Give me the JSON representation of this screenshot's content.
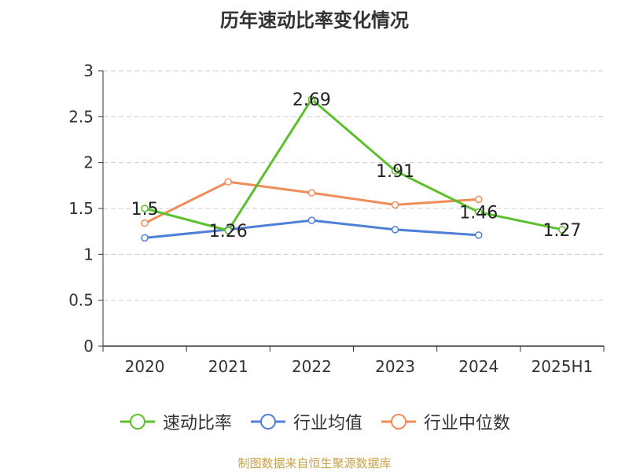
{
  "chart_data": {
    "type": "line",
    "title": "历年速动比率变化情况",
    "categories": [
      "2020",
      "2021",
      "2022",
      "2023",
      "2024",
      "2025H1"
    ],
    "ylim": [
      0,
      3
    ],
    "yticks": [
      "0",
      "0.5",
      "1",
      "1.5",
      "2",
      "2.5",
      "3"
    ],
    "grid": true,
    "legend_position": "bottom",
    "series": [
      {
        "name": "速动比率",
        "color": "#5cc02d",
        "values": [
          1.5,
          1.26,
          2.69,
          1.91,
          1.46,
          1.27
        ],
        "labels": [
          "1.5",
          "1.26",
          "2.69",
          "1.91",
          "1.46",
          "1.27"
        ]
      },
      {
        "name": "行业均值",
        "color": "#4f80d8",
        "values": [
          1.18,
          1.27,
          1.37,
          1.27,
          1.21,
          null
        ]
      },
      {
        "name": "行业中位数",
        "color": "#f08c58",
        "values": [
          1.34,
          1.79,
          1.67,
          1.54,
          1.6,
          null
        ]
      }
    ]
  },
  "source": "制图数据来自恒生聚源数据库"
}
